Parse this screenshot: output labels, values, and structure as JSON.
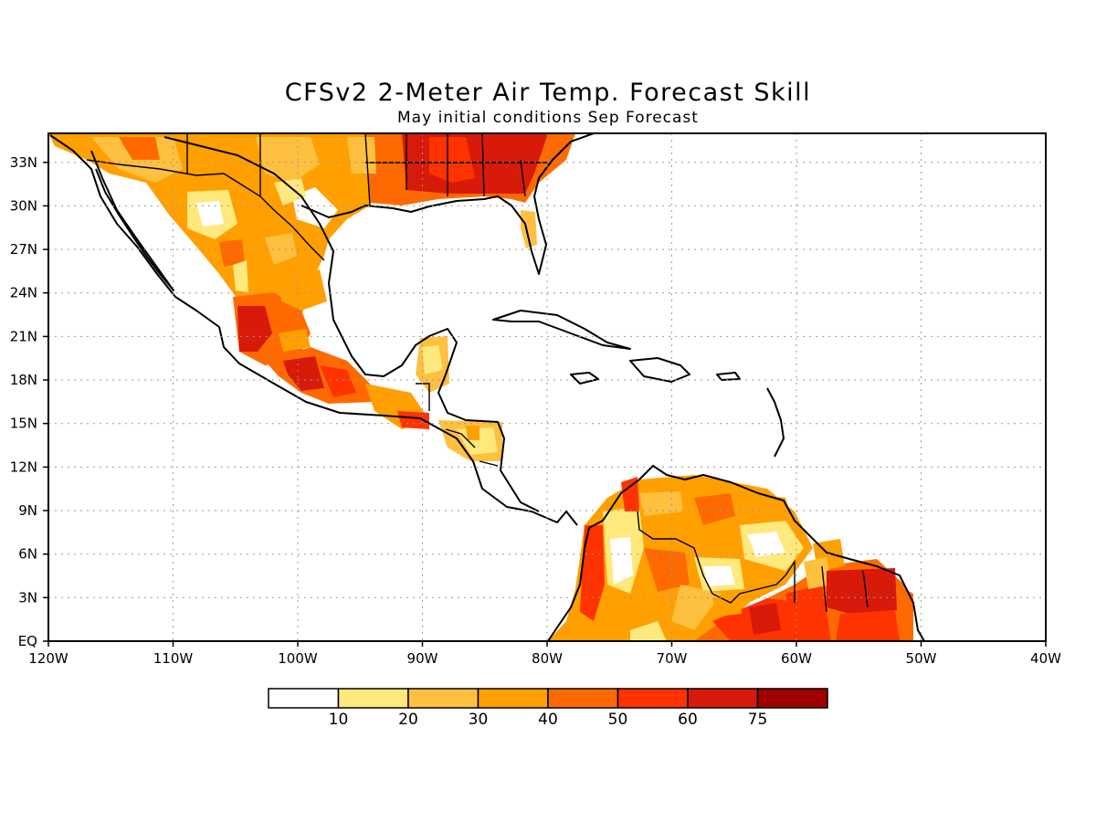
{
  "title": "CFSv2 2-Meter Air Temp. Forecast Skill",
  "subtitle": "May initial conditions  Sep Forecast",
  "map": {
    "lon_range": [
      -120,
      -40
    ],
    "lat_range": [
      0,
      35
    ],
    "lat_ticks": [
      "EQ",
      "3N",
      "6N",
      "9N",
      "12N",
      "15N",
      "18N",
      "21N",
      "24N",
      "27N",
      "30N",
      "33N"
    ],
    "lon_ticks": [
      "120W",
      "110W",
      "100W",
      "90W",
      "80W",
      "70W",
      "60W",
      "50W",
      "40W"
    ],
    "grid": "dotted"
  },
  "colorbar": {
    "labels": [
      "10",
      "20",
      "30",
      "40",
      "50",
      "60",
      "75"
    ],
    "colors": [
      "#ffffff",
      "#ffe87c",
      "#ffc040",
      "#ffa000",
      "#ff6a00",
      "#ff3300",
      "#d81a0a",
      "#a00000"
    ]
  },
  "skill_regions": [
    {
      "name": "southeast-us",
      "level": 6
    },
    {
      "name": "texas-northern-mexico",
      "level": 3
    },
    {
      "name": "western-mexico",
      "level": 5
    },
    {
      "name": "southern-mexico",
      "level": 5
    },
    {
      "name": "yucatan",
      "level": 3
    },
    {
      "name": "central-america",
      "level": 3
    },
    {
      "name": "colombia-venezuela",
      "level": 4
    },
    {
      "name": "guianas-amazon",
      "level": 5
    },
    {
      "name": "suriname-french-guiana",
      "level": 6
    }
  ]
}
